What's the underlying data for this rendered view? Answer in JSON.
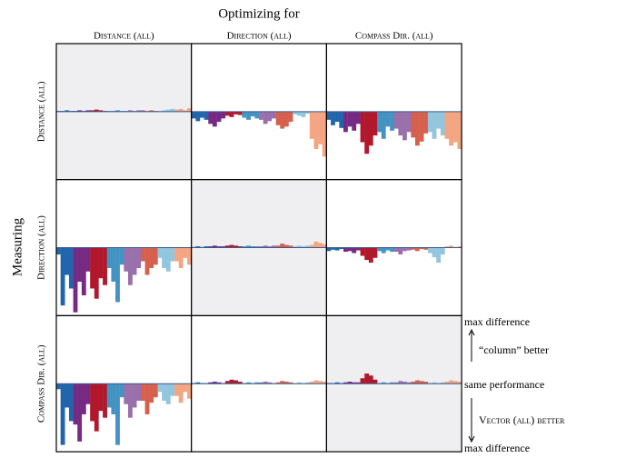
{
  "chart_data": {
    "type": "bar",
    "title": "Optimizing for",
    "y_label": "Measuring",
    "columns": [
      "Distance (all)",
      "Direction (all)",
      "Compass Dir. (all)"
    ],
    "rows": [
      "Distance (all)",
      "Direction (all)",
      "Compass Dir. (all)"
    ],
    "group_colors": [
      "#2166ac",
      "#762a83",
      "#b2182b",
      "#4393c3",
      "#9970ab",
      "#d6604d",
      "#92c5de",
      "#f4a582"
    ],
    "ylim": [
      -1,
      1
    ],
    "annotations": [
      "max difference",
      "“column” better",
      "same performance",
      "Vector (all) better",
      "max difference"
    ],
    "panels": [
      [
        {
          "shaded": true,
          "values": [
            0.01,
            0.01,
            0.02,
            0.01,
            0.01,
            0.02,
            0.01,
            0.02,
            0.02,
            0.03,
            0.02,
            0.01,
            0.01,
            0.01,
            0.02,
            0.01,
            0.01,
            0.02,
            0.01,
            0.02,
            0.02,
            0.01,
            0.02,
            0.01,
            0.01,
            0.02,
            0.03,
            0.04,
            0.03,
            0.04,
            0.02,
            0.05
          ]
        },
        {
          "shaded": false,
          "values": [
            -0.1,
            -0.14,
            -0.09,
            -0.12,
            -0.18,
            -0.22,
            -0.15,
            -0.1,
            -0.06,
            -0.08,
            -0.04,
            -0.05,
            -0.09,
            -0.12,
            -0.07,
            -0.1,
            -0.12,
            -0.18,
            -0.14,
            -0.1,
            -0.2,
            -0.25,
            -0.22,
            -0.15,
            -0.04,
            -0.06,
            -0.08,
            -0.03,
            -0.4,
            -0.55,
            -0.48,
            -0.66
          ]
        },
        {
          "shaded": false,
          "values": [
            -0.12,
            -0.2,
            -0.15,
            -0.24,
            -0.3,
            -0.22,
            -0.28,
            -0.18,
            -0.45,
            -0.62,
            -0.5,
            -0.35,
            -0.3,
            -0.4,
            -0.22,
            -0.28,
            -0.25,
            -0.35,
            -0.42,
            -0.3,
            -0.38,
            -0.5,
            -0.44,
            -0.32,
            -0.3,
            -0.4,
            -0.25,
            -0.35,
            -0.4,
            -0.5,
            -0.45,
            -0.55
          ]
        }
      ],
      [
        {
          "shaded": false,
          "values": [
            -0.1,
            -0.85,
            -0.4,
            -0.6,
            -0.95,
            -0.5,
            -0.7,
            -0.35,
            -0.6,
            -0.75,
            -0.45,
            -0.55,
            -0.3,
            -0.5,
            -0.8,
            -0.25,
            -0.35,
            -0.55,
            -0.4,
            -0.3,
            -0.2,
            -0.4,
            -0.3,
            -0.25,
            -0.15,
            -0.3,
            -0.35,
            -0.2,
            -0.2,
            -0.3,
            -0.15,
            -0.25
          ]
        },
        {
          "shaded": true,
          "values": [
            0.01,
            0.02,
            0.01,
            0.02,
            0.02,
            0.03,
            0.02,
            0.02,
            0.03,
            0.04,
            0.03,
            0.02,
            0.02,
            0.03,
            0.02,
            0.02,
            0.02,
            0.03,
            0.02,
            0.03,
            0.03,
            0.06,
            0.04,
            0.03,
            0.02,
            0.03,
            0.02,
            0.03,
            0.04,
            0.09,
            0.07,
            0.05
          ]
        },
        {
          "shaded": false,
          "values": [
            -0.05,
            -0.03,
            -0.04,
            -0.02,
            -0.06,
            -0.05,
            -0.08,
            -0.04,
            -0.12,
            -0.18,
            -0.22,
            -0.15,
            -0.05,
            -0.08,
            -0.04,
            -0.06,
            -0.06,
            -0.1,
            -0.05,
            -0.04,
            -0.03,
            -0.05,
            -0.02,
            -0.03,
            -0.08,
            -0.14,
            -0.22,
            -0.1,
            0.02,
            0.03,
            0.01,
            0.02
          ]
        }
      ],
      [
        {
          "shaded": false,
          "values": [
            -0.08,
            -0.9,
            -0.35,
            -0.55,
            -0.6,
            -0.85,
            -0.45,
            -0.3,
            -0.55,
            -0.7,
            -0.4,
            -0.5,
            -0.35,
            -0.45,
            -0.9,
            -0.2,
            -0.3,
            -0.5,
            -0.35,
            -0.25,
            -0.25,
            -0.45,
            -0.28,
            -0.2,
            -0.12,
            -0.25,
            -0.3,
            -0.18,
            -0.18,
            -0.28,
            -0.12,
            -0.22
          ]
        },
        {
          "shaded": false,
          "values": [
            0.01,
            0.02,
            0.01,
            0.01,
            0.02,
            0.03,
            0.02,
            0.01,
            0.04,
            0.06,
            0.05,
            0.03,
            0.01,
            0.02,
            0.01,
            0.02,
            0.02,
            0.03,
            0.02,
            0.01,
            0.02,
            0.04,
            0.03,
            0.02,
            0.01,
            0.02,
            0.01,
            0.02,
            0.03,
            0.05,
            0.04,
            0.03
          ]
        },
        {
          "shaded": true,
          "values": [
            0.01,
            0.01,
            0.02,
            0.01,
            0.02,
            0.03,
            0.02,
            0.02,
            0.08,
            0.15,
            0.12,
            0.06,
            0.01,
            0.02,
            0.01,
            0.02,
            0.02,
            0.04,
            0.03,
            0.02,
            0.03,
            0.05,
            0.04,
            0.03,
            0.01,
            0.02,
            0.01,
            0.02,
            0.03,
            0.05,
            0.04,
            0.03
          ]
        }
      ]
    ]
  }
}
